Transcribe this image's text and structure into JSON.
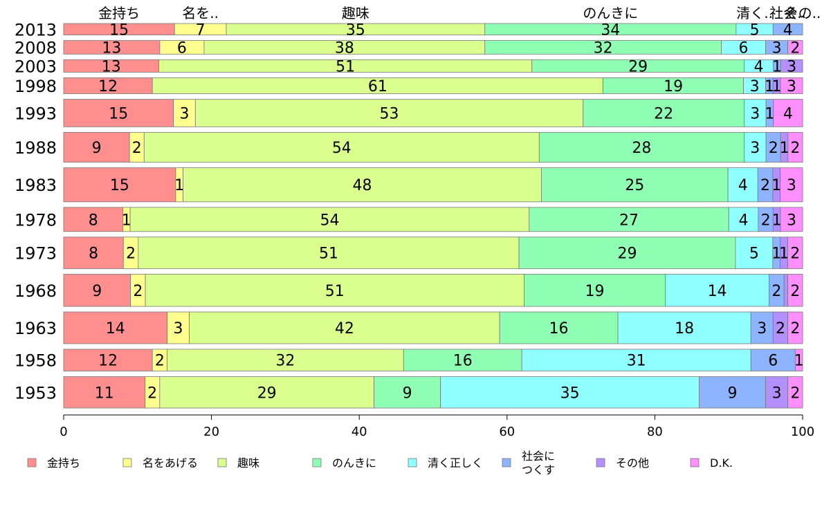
{
  "chart_data": {
    "type": "bar",
    "orientation": "horizontal",
    "stacked": true,
    "title": "",
    "xlabel": "",
    "ylabel": "",
    "xlim": [
      0,
      100
    ],
    "x_ticks": [
      0,
      20,
      40,
      60,
      80,
      100
    ],
    "grid": false,
    "legend_position": "bottom",
    "categories": [
      "2013",
      "2008",
      "2003",
      "1998",
      "1993",
      "1988",
      "1983",
      "1978",
      "1973",
      "1968",
      "1963",
      "1958",
      "1953"
    ],
    "category_weights": [
      74,
      88,
      81,
      103,
      178,
      193,
      220,
      156,
      204,
      208,
      205,
      141,
      203
    ],
    "top_labels": [
      "金持ち",
      "名を..",
      "趣味",
      "のんきに",
      "清く..",
      "社会..",
      "その..",
      ""
    ],
    "series": [
      {
        "name": "金持ち",
        "color": "#ff8f8f",
        "values": [
          15,
          13,
          13,
          12,
          15,
          9,
          15,
          8,
          8,
          9,
          14,
          12,
          11
        ]
      },
      {
        "name": "名をあげる",
        "color": "#ffff8f",
        "values": [
          7,
          6,
          0,
          0,
          3,
          2,
          1,
          1,
          2,
          2,
          3,
          2,
          2
        ]
      },
      {
        "name": "趣味",
        "color": "#daff8f",
        "values": [
          35,
          38,
          51,
          61,
          53,
          54,
          48,
          54,
          51,
          51,
          42,
          32,
          29
        ]
      },
      {
        "name": "のんきに",
        "color": "#8fffb4",
        "values": [
          34,
          32,
          29,
          19,
          22,
          28,
          25,
          27,
          29,
          19,
          16,
          16,
          9
        ]
      },
      {
        "name": "清く正しく",
        "color": "#8fffff",
        "values": [
          5,
          6,
          4,
          3,
          3,
          3,
          4,
          4,
          5,
          14,
          18,
          31,
          35
        ]
      },
      {
        "name": "社会に\nつくす",
        "color": "#8fb4ff",
        "values": [
          4,
          3,
          1,
          1,
          1,
          2,
          2,
          2,
          1,
          2,
          3,
          6,
          9
        ]
      },
      {
        "name": "その他",
        "color": "#b48fff",
        "values": [
          0,
          0,
          3,
          1,
          0,
          1,
          1,
          1,
          1,
          0.5,
          2,
          0,
          3
        ]
      },
      {
        "name": "D.K.",
        "color": "#ff8fff",
        "values": [
          0,
          2,
          0,
          3,
          4,
          2,
          3,
          3,
          2,
          2,
          2,
          1,
          2
        ]
      }
    ]
  }
}
